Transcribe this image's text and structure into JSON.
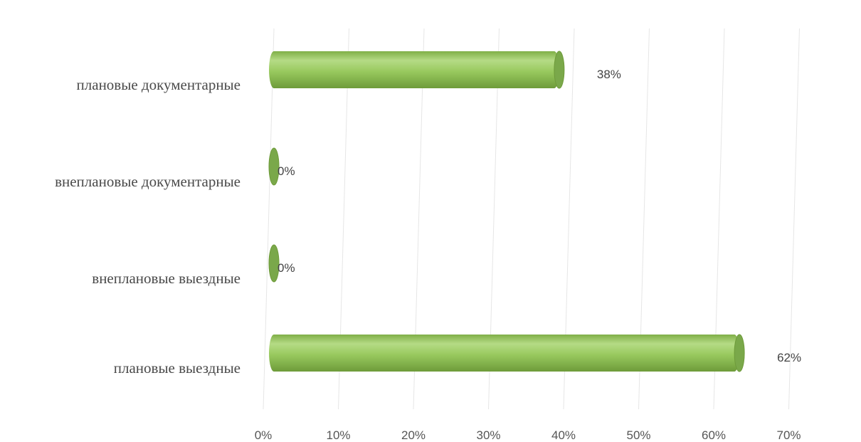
{
  "chart_data": {
    "type": "bar",
    "orientation": "horizontal",
    "style": "3d-cylinder",
    "categories": [
      "плановые документарные",
      "внеплановые документарные",
      "внеплановые выездные",
      "плановые выездные"
    ],
    "values": [
      38,
      0,
      0,
      62
    ],
    "data_labels": [
      "38%",
      "0%",
      "0%",
      "62%"
    ],
    "x_ticks": [
      "0%",
      "10%",
      "20%",
      "30%",
      "40%",
      "50%",
      "60%",
      "70%"
    ],
    "xlim": [
      0,
      70
    ],
    "grid": true,
    "legend": "none",
    "colors": {
      "bar": "#8dc152",
      "bar_highlight": "#b5db85",
      "bar_shadow": "#6e9b3a",
      "bar_cap": "#7aa84a"
    }
  }
}
